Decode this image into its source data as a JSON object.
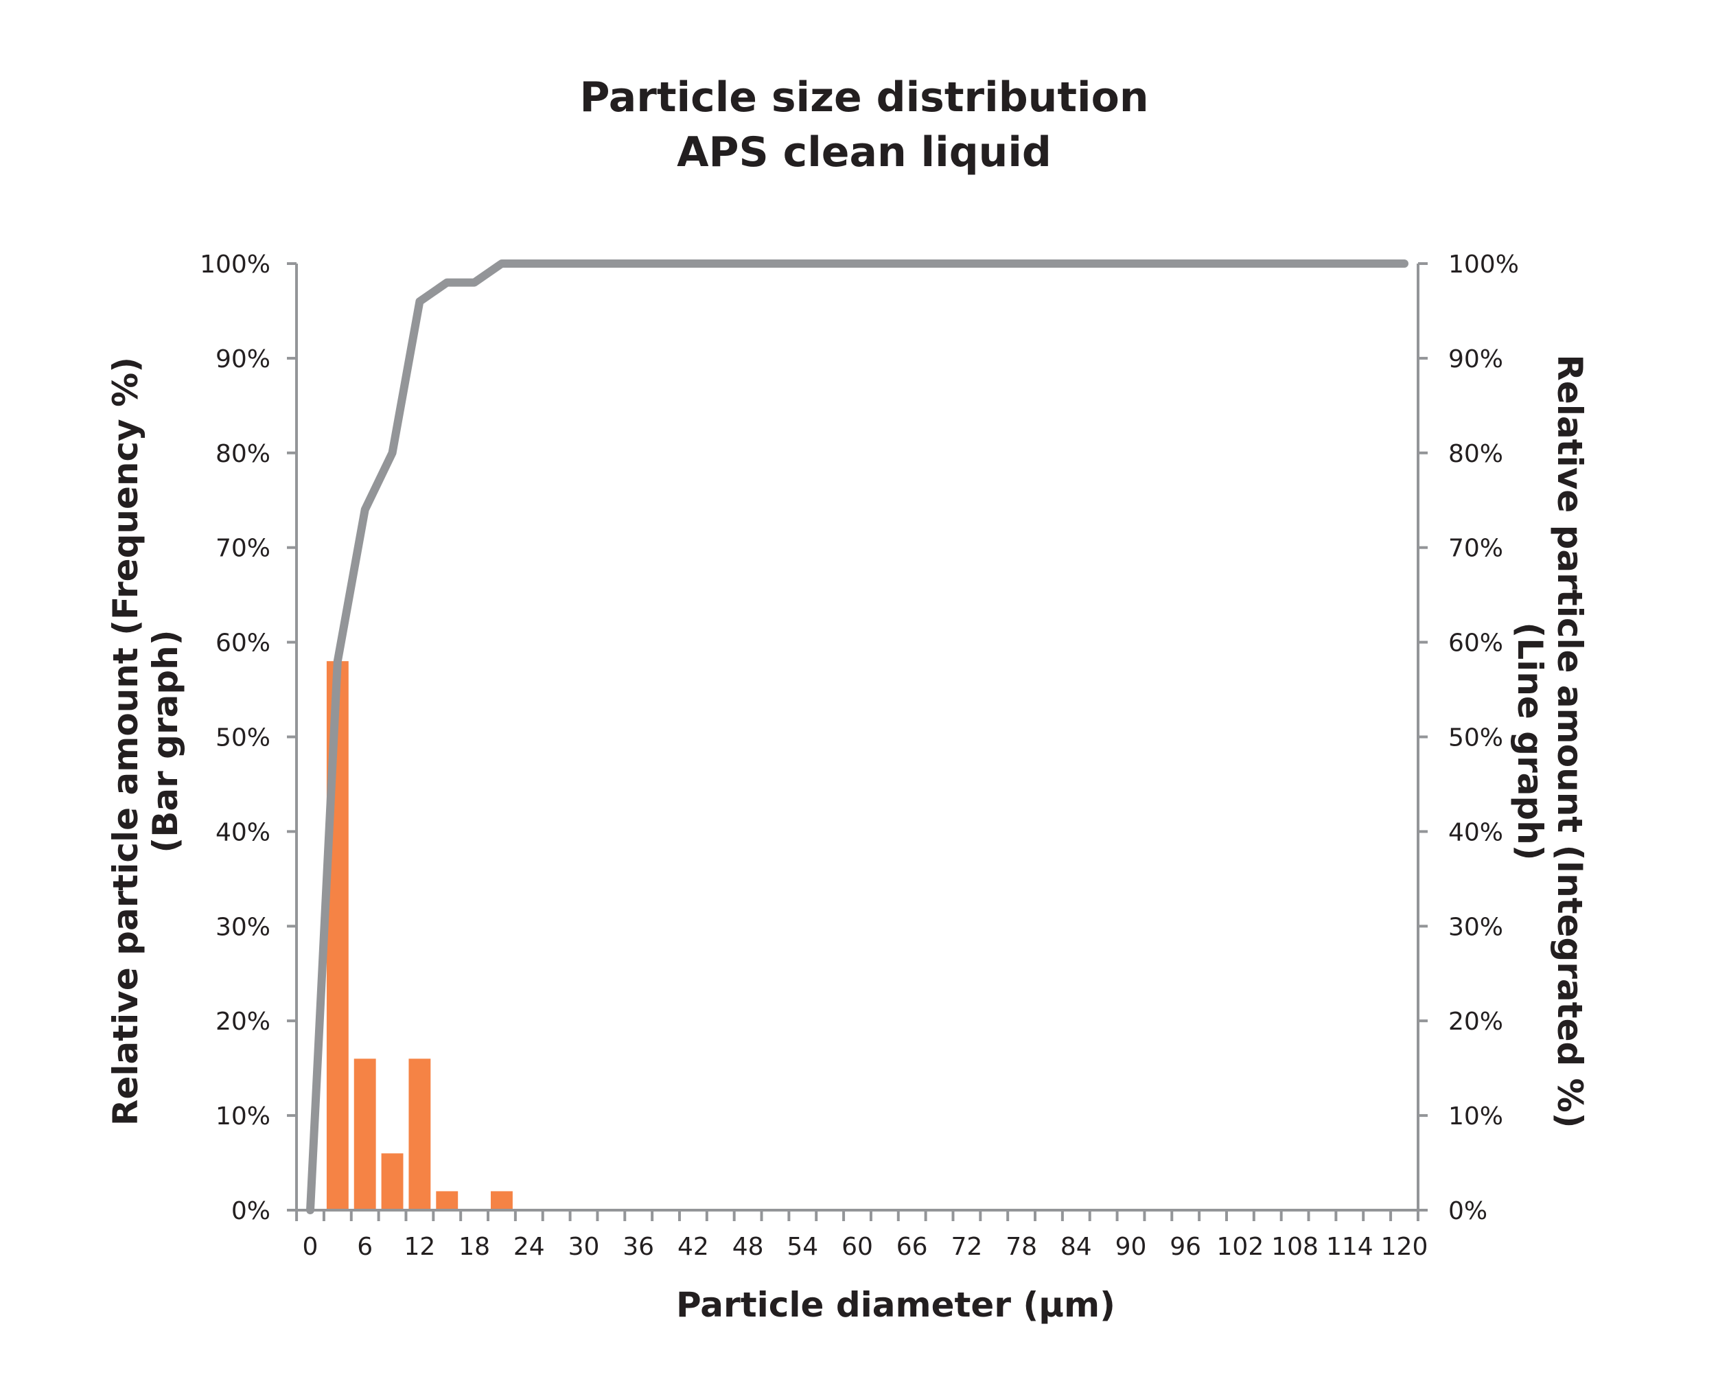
{
  "chart_data": {
    "type": "bar+line",
    "title_lines": [
      "Particle size distribution",
      "APS clean liquid"
    ],
    "xlabel": "Particle diameter (µm)",
    "ylabel_left_lines": [
      "Relative particle amount (Frequency %)",
      "(Bar graph)"
    ],
    "ylabel_right_lines": [
      "Relative particle amount (Integrated %)",
      "(Line graph)"
    ],
    "x_ticks": [
      0,
      6,
      12,
      18,
      24,
      30,
      36,
      42,
      48,
      54,
      60,
      66,
      72,
      78,
      84,
      90,
      96,
      102,
      108,
      114,
      120
    ],
    "xlim": [
      0,
      120
    ],
    "y_ticks": [
      "0%",
      "10%",
      "20%",
      "30%",
      "40%",
      "50%",
      "60%",
      "70%",
      "80%",
      "90%",
      "100%"
    ],
    "ylim": [
      0,
      100
    ],
    "grid": false,
    "bar_series": {
      "color": "#f58345",
      "x": [
        3,
        6,
        9,
        12,
        15,
        18,
        21
      ],
      "values": [
        58,
        16,
        6,
        16,
        2,
        0,
        2
      ]
    },
    "line_series": {
      "color": "#939598",
      "x": [
        0,
        3,
        6,
        9,
        12,
        15,
        18,
        21,
        24,
        120
      ],
      "values": [
        0,
        58,
        74,
        80,
        96,
        98,
        98,
        100,
        100,
        100
      ]
    }
  }
}
